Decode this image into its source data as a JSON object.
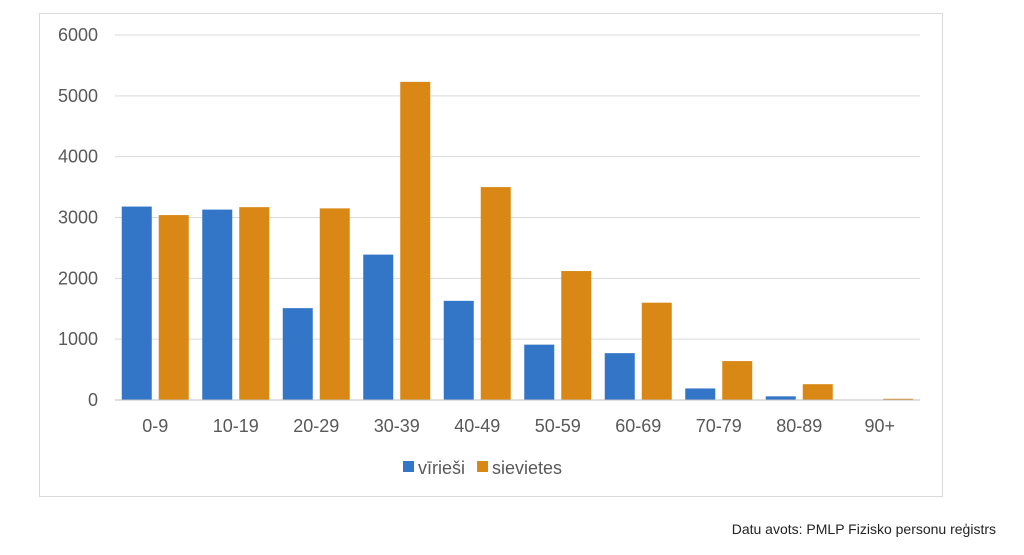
{
  "chart_data": {
    "type": "bar",
    "categories": [
      "0-9",
      "10-19",
      "20-29",
      "30-39",
      "40-49",
      "50-59",
      "60-69",
      "70-79",
      "80-89",
      "90+"
    ],
    "series": [
      {
        "name": "vīrieši",
        "color": "#3375c6",
        "values": [
          3180,
          3130,
          1510,
          2390,
          1630,
          910,
          770,
          190,
          60,
          0
        ]
      },
      {
        "name": "sievietes",
        "color": "#d98816",
        "values": [
          3040,
          3170,
          3150,
          5230,
          3500,
          2120,
          1600,
          640,
          260,
          20
        ]
      }
    ],
    "ylim": [
      0,
      6000
    ],
    "yticks": [
      "0",
      "1000",
      "2000",
      "3000",
      "4000",
      "5000",
      "6000"
    ],
    "grid": true,
    "legend_position": "bottom"
  },
  "source_note": "Datu avots: PMLP Fizisko personu reģistrs"
}
